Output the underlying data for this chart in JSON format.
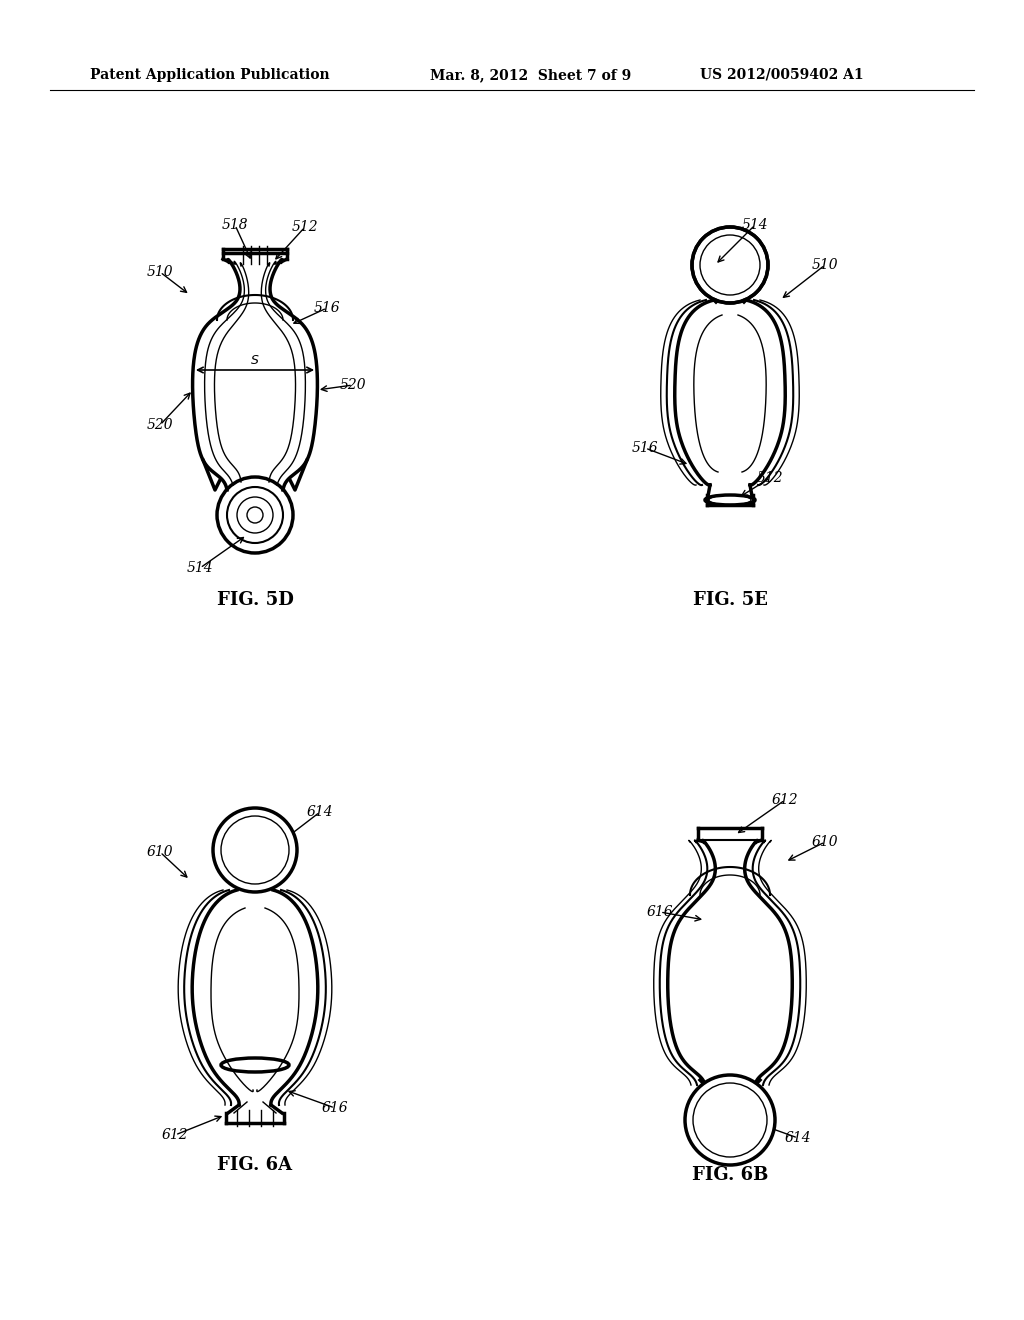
{
  "background_color": "#ffffff",
  "header_left": "Patent Application Publication",
  "header_mid": "Mar. 8, 2012  Sheet 7 of 9",
  "header_right": "US 2012/0059402 A1",
  "fig5d_label": "FIG. 5D",
  "fig5e_label": "FIG. 5E",
  "fig6a_label": "FIG. 6A",
  "fig6b_label": "FIG. 6B",
  "line_color": "#000000",
  "text_color": "#000000",
  "header_fontsize": 10,
  "fig_label_fontsize": 13,
  "anno_fontsize": 10
}
